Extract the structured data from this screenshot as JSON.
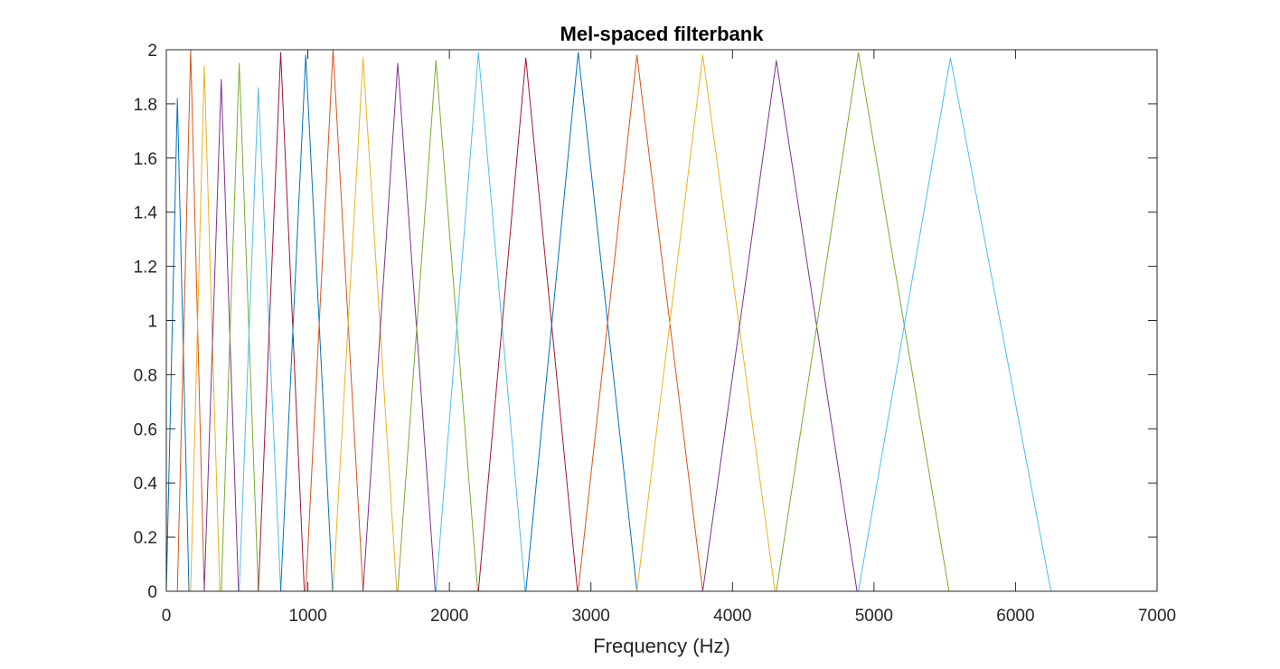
{
  "chart_data": {
    "type": "line",
    "title": "Mel-spaced filterbank",
    "xlabel": "Frequency (Hz)",
    "ylabel": "",
    "xlim": [
      0,
      7000
    ],
    "ylim": [
      0,
      2
    ],
    "x_ticks": [
      0,
      1000,
      2000,
      3000,
      4000,
      5000,
      6000,
      7000
    ],
    "y_ticks": [
      0,
      0.2,
      0.4,
      0.6,
      0.8,
      1,
      1.2,
      1.4,
      1.6,
      1.8,
      2
    ],
    "x_tick_labels": [
      "0",
      "1000",
      "2000",
      "3000",
      "4000",
      "5000",
      "6000",
      "7000"
    ],
    "y_tick_labels": [
      "0",
      "0.2",
      "0.4",
      "0.6",
      "0.8",
      "1",
      "1.2",
      "1.4",
      "1.6",
      "1.8",
      "2"
    ],
    "grid": false,
    "legend": "none",
    "colors": [
      "#0072BD",
      "#D95319",
      "#EDB120",
      "#7E2F8E",
      "#77AC30",
      "#4DBEEE",
      "#A2142F"
    ],
    "series": [
      {
        "values": [
          [
            0,
            0
          ],
          [
            78,
            1.82
          ],
          [
            160,
            0
          ]
        ]
      },
      {
        "values": [
          [
            78,
            0
          ],
          [
            172,
            2.0
          ],
          [
            268,
            0
          ]
        ]
      },
      {
        "values": [
          [
            172,
            0
          ],
          [
            268,
            1.94
          ],
          [
            378,
            0
          ]
        ]
      },
      {
        "values": [
          [
            268,
            0
          ],
          [
            388,
            1.89
          ],
          [
            510,
            0
          ]
        ]
      },
      {
        "values": [
          [
            388,
            0
          ],
          [
            515,
            1.95
          ],
          [
            650,
            0
          ]
        ]
      },
      {
        "values": [
          [
            515,
            0
          ],
          [
            650,
            1.86
          ],
          [
            808,
            0
          ]
        ]
      },
      {
        "values": [
          [
            650,
            0
          ],
          [
            808,
            1.99
          ],
          [
            975,
            0
          ]
        ]
      },
      {
        "values": [
          [
            808,
            0
          ],
          [
            985,
            1.98
          ],
          [
            1175,
            0
          ]
        ]
      },
      {
        "values": [
          [
            985,
            0
          ],
          [
            1178,
            2.0
          ],
          [
            1390,
            0
          ]
        ]
      },
      {
        "values": [
          [
            1178,
            0
          ],
          [
            1390,
            1.97
          ],
          [
            1628,
            0
          ]
        ]
      },
      {
        "values": [
          [
            1390,
            0
          ],
          [
            1635,
            1.95
          ],
          [
            1900,
            0
          ]
        ]
      },
      {
        "values": [
          [
            1635,
            0
          ],
          [
            1905,
            1.96
          ],
          [
            2200,
            0
          ]
        ]
      },
      {
        "values": [
          [
            1905,
            0
          ],
          [
            2205,
            1.99
          ],
          [
            2535,
            0
          ]
        ]
      },
      {
        "values": [
          [
            2205,
            0
          ],
          [
            2540,
            1.97
          ],
          [
            2905,
            0
          ]
        ]
      },
      {
        "values": [
          [
            2540,
            0
          ],
          [
            2910,
            1.99
          ],
          [
            3325,
            0
          ]
        ]
      },
      {
        "values": [
          [
            2910,
            0
          ],
          [
            3325,
            1.98
          ],
          [
            3790,
            0
          ]
        ]
      },
      {
        "values": [
          [
            3325,
            0
          ],
          [
            3790,
            1.98
          ],
          [
            4300,
            0
          ]
        ]
      },
      {
        "values": [
          [
            3790,
            0
          ],
          [
            4310,
            1.96
          ],
          [
            4880,
            0
          ]
        ]
      },
      {
        "values": [
          [
            4310,
            0
          ],
          [
            4890,
            1.99
          ],
          [
            5530,
            0
          ]
        ]
      },
      {
        "values": [
          [
            4890,
            0
          ],
          [
            5540,
            1.97
          ],
          [
            6250,
            0
          ]
        ]
      }
    ]
  }
}
